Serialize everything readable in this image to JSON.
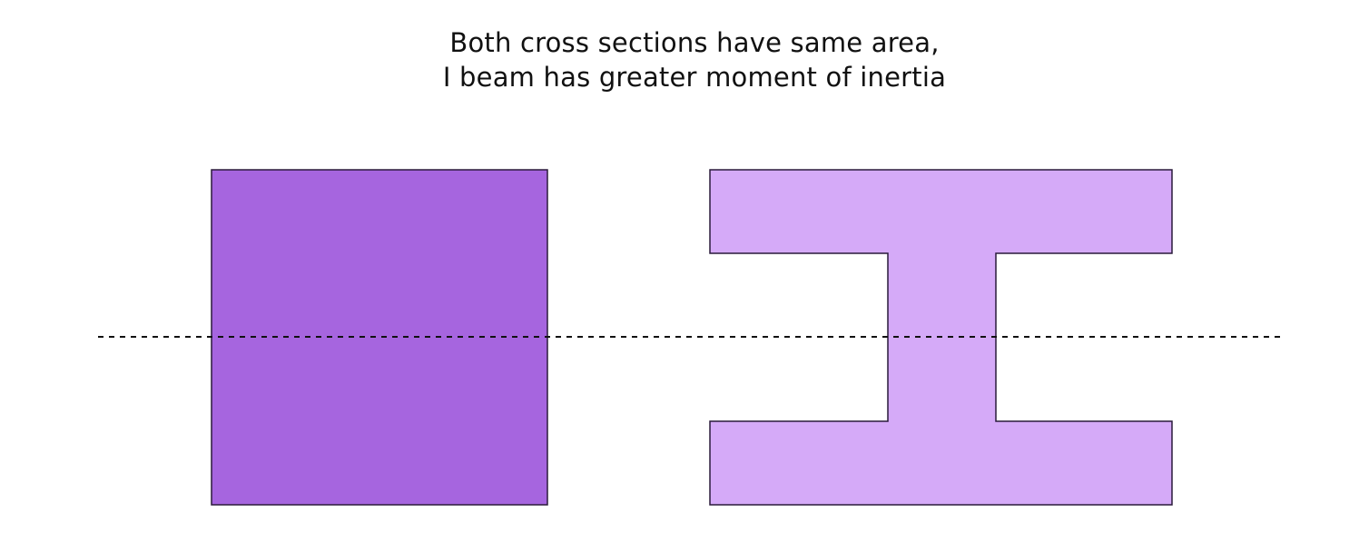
{
  "caption": {
    "line1": "Both cross sections have same area,",
    "line2": "I beam has greater moment of inertia"
  },
  "shapes": {
    "rectangle_section": {
      "fill": "#a665df",
      "stroke": "#2a1a3a"
    },
    "i_beam_section": {
      "fill": "#d5aaf8",
      "stroke": "#2a1a3a"
    },
    "neutral_axis": {
      "stroke": "#111111",
      "style": "dashed"
    }
  }
}
